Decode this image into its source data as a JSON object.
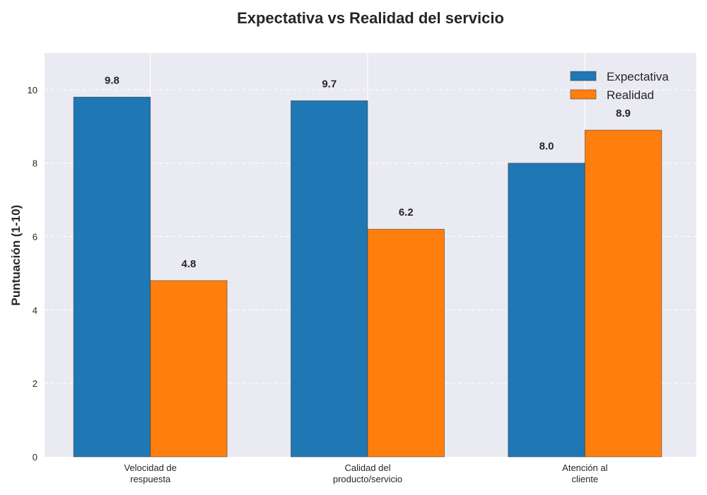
{
  "chart_data": {
    "type": "bar",
    "title": "Expectativa vs Realidad del servicio",
    "xlabel": "",
    "ylabel": "Puntuación (1-10)",
    "ylim": [
      0,
      11
    ],
    "yticks": [
      0,
      2,
      4,
      6,
      8,
      10
    ],
    "grid": true,
    "legend_position": "top-right",
    "categories": [
      [
        "Velocidad de",
        "respuesta"
      ],
      [
        "Calidad del",
        "producto/servicio"
      ],
      [
        "Atención al",
        "cliente"
      ]
    ],
    "series": [
      {
        "name": "Expectativa",
        "color": "#1f77b4",
        "values": [
          9.8,
          9.7,
          8.0
        ],
        "labels": [
          "9.8",
          "9.7",
          "8.0"
        ]
      },
      {
        "name": "Realidad",
        "color": "#ff7f0e",
        "values": [
          4.8,
          6.2,
          8.9
        ],
        "labels": [
          "4.8",
          "6.2",
          "8.9"
        ]
      }
    ],
    "plot_background": "#eaeaf2"
  }
}
